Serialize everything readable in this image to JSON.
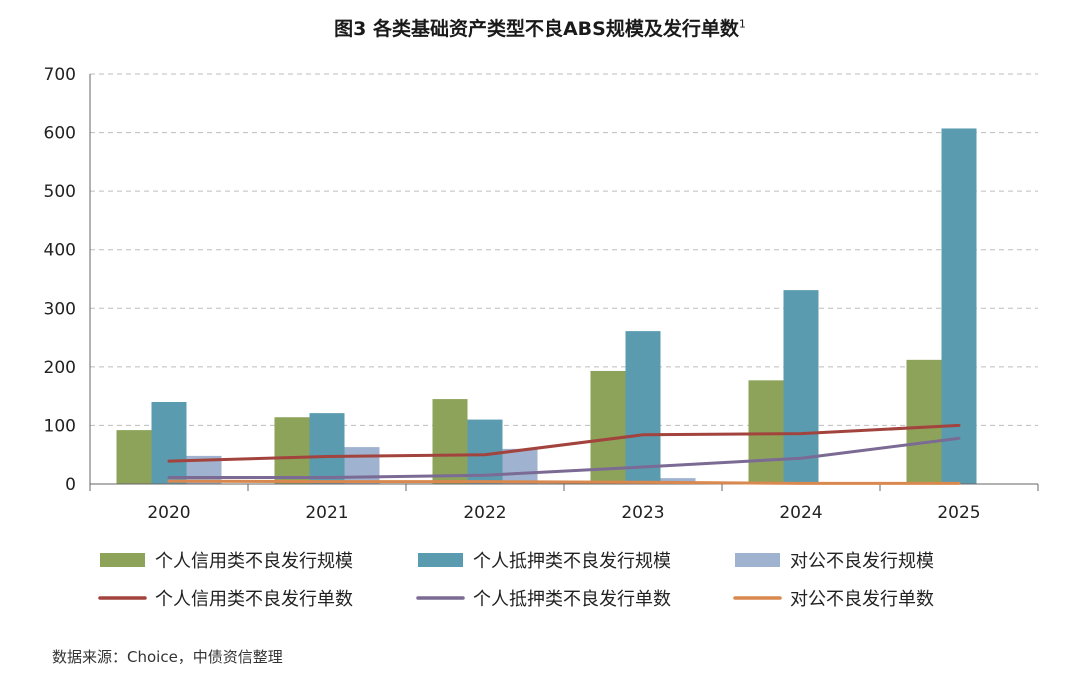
{
  "chart_data": {
    "type": "bar",
    "title": "图3  各类基础资产类型不良ABS规模及发行单数",
    "title_footnote": "1",
    "categories": [
      "2020",
      "2021",
      "2022",
      "2023",
      "2024",
      "2025"
    ],
    "y_ticks": [
      "0",
      "100",
      "200",
      "300",
      "400",
      "500",
      "600",
      "700"
    ],
    "ylim": [
      0,
      700
    ],
    "grid": true,
    "legend_position": "bottom",
    "bar_series": [
      {
        "name": "个人信用类不良发行规模",
        "color": "#8da35a",
        "values": [
          92,
          114,
          145,
          193,
          177,
          212
        ]
      },
      {
        "name": "个人抵押类不良发行规模",
        "color": "#5a9bb0",
        "values": [
          140,
          121,
          110,
          261,
          331,
          607
        ]
      },
      {
        "name": "对公不良发行规模",
        "color": "#9fb2cf",
        "values": [
          48,
          63,
          60,
          10,
          0,
          0
        ]
      }
    ],
    "line_series": [
      {
        "name": "个人信用类不良发行单数",
        "color": "#a3433d",
        "values": [
          39,
          47,
          50,
          84,
          86,
          100
        ]
      },
      {
        "name": "个人抵押类不良发行单数",
        "color": "#7a6a94",
        "values": [
          11,
          11,
          15,
          29,
          44,
          78
        ]
      },
      {
        "name": "对公不良发行单数",
        "color": "#d9894f",
        "values": [
          5,
          4,
          4,
          3,
          1,
          1
        ]
      }
    ]
  },
  "source": "数据来源：Choice，中债资信整理"
}
